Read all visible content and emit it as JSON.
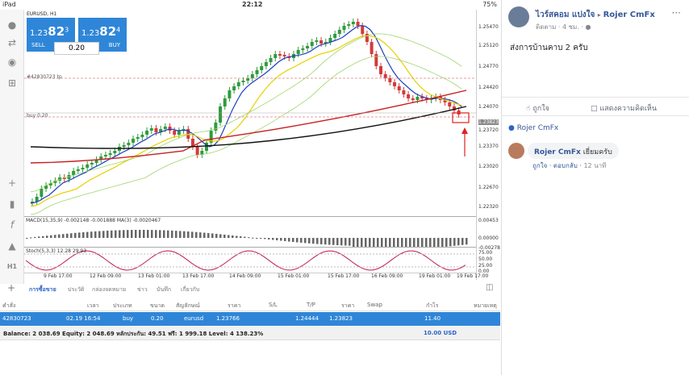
{
  "status_bar": {
    "device": "iPad",
    "time": "22:12",
    "battery": "75%"
  },
  "chart": {
    "pair_label": "EURUSD, H1",
    "sell_price": {
      "prefix": "1.23",
      "big": "82",
      "sup": "3"
    },
    "buy_price": {
      "prefix": "1.23",
      "big": "82",
      "sup": "4"
    },
    "sell_label": "SELL",
    "buy_label": "BUY",
    "lot": "0.20",
    "tp_label": "#42830723 tp",
    "buy_line_label": "buy 0.20",
    "y_ticks": [
      "1.25470",
      "1.25120",
      "1.24770",
      "1.24420",
      "1.24070",
      "1.23823",
      "1.23720",
      "1.23370",
      "1.23020",
      "1.22670",
      "1.22320"
    ],
    "x_ticks": [
      "9 Feb 17:00",
      "12 Feb 09:00",
      "13 Feb 01:00",
      "13 Feb 17:00",
      "14 Feb 09:00",
      "15 Feb 01:00",
      "15 Feb 17:00",
      "16 Feb 09:00",
      "19 Feb 01:00",
      "19 Feb 17:00"
    ],
    "macd_label": "MACD(15,35,9) -0.002148 -0.001888 MA(3) -0.0020467",
    "macd_ticks": [
      "0.00453",
      "0.00000",
      "-0.00278"
    ],
    "stoch_label": "Stoch(5,3,3) 12.28 29.93",
    "stoch_ticks": [
      "75.00",
      "50.00",
      "25.00",
      "0.00"
    ],
    "colors": {
      "up": "#2e9b3c",
      "down": "#d33a3a",
      "panel": "#2f86d8"
    }
  },
  "left_toolbar": [
    "user-icon",
    "order-icon",
    "chat-icon",
    "add-icon",
    "crosshair-icon",
    "candles-icon",
    "function-icon",
    "objects-icon",
    "timeframe-label"
  ],
  "timeframe": "H1",
  "tabs": [
    "การซื้อขาย",
    "ประวัติ",
    "กล่องจดหมาย",
    "ข่าว",
    "บันทึก",
    "เกี่ยวกับ"
  ],
  "table": {
    "headers": [
      "คำสั่ง",
      "เวลา",
      "ประเภท",
      "ขนาด",
      "สัญลักษณ์",
      "ราคา",
      "S/L",
      "T/P",
      "ราคา",
      "Swap",
      "กำไร",
      "หมายเหตุ"
    ],
    "row": {
      "order": "42830723",
      "time": "02.19 16:54",
      "type": "buy",
      "size": "0.20",
      "symbol": "eurusd",
      "price": "1.23766",
      "sl": "",
      "tp": "1.24444",
      "cur_price": "1.23823",
      "swap": "",
      "profit": "11.40",
      "comment": ""
    },
    "balance": "Balance: 2 038.69 Equity: 2 048.69 หลักประกัน: 49.51 ฟรี: 1 999.18 Level: 4 138.23%",
    "balance_profit": "10.00  USD"
  },
  "facebook": {
    "author": "ไวร์สคอม แปงใจ",
    "to": "Rojer CmFx",
    "meta": "ติดตาม · 4 ชม. · ",
    "post_text": "ส่งการบ้านคาบ 2 ครับ",
    "like": "ถูกใจ",
    "comment": "แสดงความคิดเห็น",
    "page_like": "Rojer CmFx",
    "comment_author": "Rojer CmFx",
    "comment_text": "เยี่ยมครับ",
    "comment_like": "ถูกใจ",
    "comment_reply": "ตอบกลับ",
    "comment_time": "12 นาที"
  }
}
